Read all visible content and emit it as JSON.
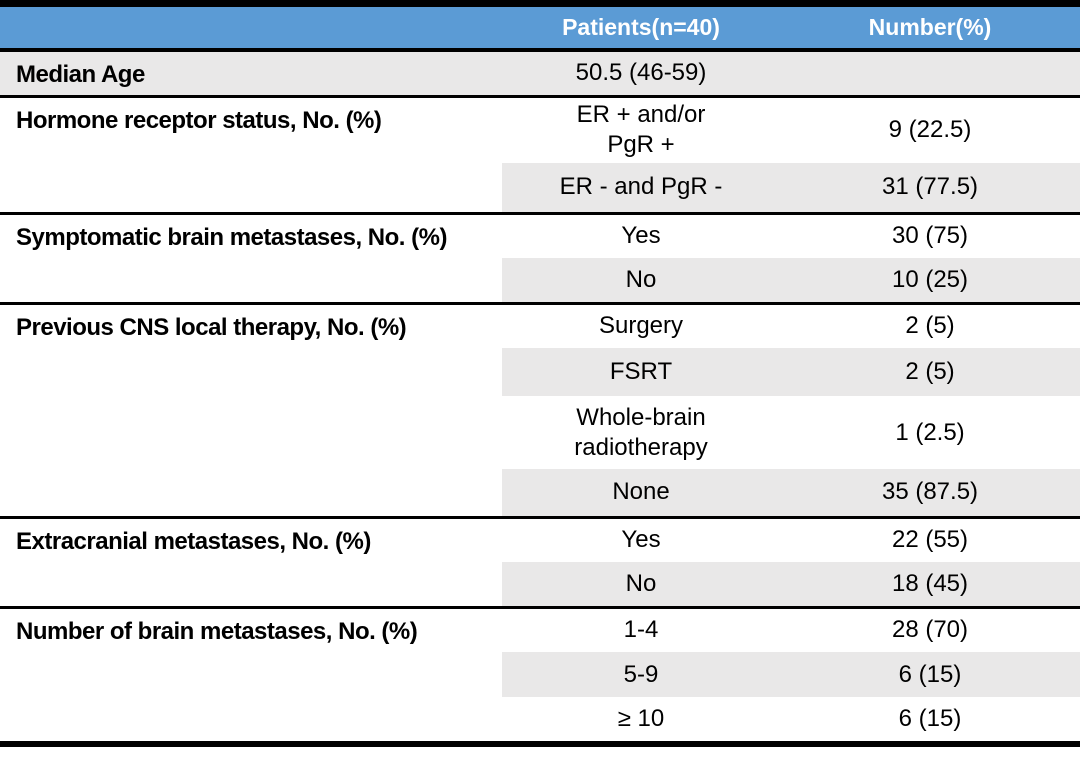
{
  "title": "Patient characteristics table",
  "colors": {
    "header_bg": "#5B9BD5",
    "header_text": "#FFFFFF",
    "band_bg": "#E9E8E8",
    "rule": "#000000"
  },
  "header": {
    "patients": "Patients(n=40)",
    "number": "Number(%)"
  },
  "sections": [
    {
      "label": "Median Age",
      "rows": [
        {
          "value": "50.5 (46-59)",
          "number": ""
        }
      ]
    },
    {
      "label": "Hormone receptor status, No. (%)",
      "rows": [
        {
          "value": "ER + and/or\nPgR +",
          "number": "9 (22.5)"
        },
        {
          "value": "ER - and PgR -",
          "number": "31 (77.5)"
        }
      ]
    },
    {
      "label": "Symptomatic brain metastases, No. (%)",
      "rows": [
        {
          "value": "Yes",
          "number": "30 (75)"
        },
        {
          "value": "No",
          "number": "10 (25)"
        }
      ]
    },
    {
      "label": "Previous CNS local therapy, No. (%)",
      "rows": [
        {
          "value": "Surgery",
          "number": "2 (5)"
        },
        {
          "value": "FSRT",
          "number": "2 (5)"
        },
        {
          "value": "Whole-brain\nradiotherapy",
          "number": "1 (2.5)"
        },
        {
          "value": "None",
          "number": "35 (87.5)"
        }
      ]
    },
    {
      "label": "Extracranial metastases, No. (%)",
      "rows": [
        {
          "value": "Yes",
          "number": "22 (55)"
        },
        {
          "value": "No",
          "number": "18 (45)"
        }
      ]
    },
    {
      "label": "Number of brain metastases, No. (%)",
      "rows": [
        {
          "value": "1-4",
          "number": "28 (70)"
        },
        {
          "value": "5-9",
          "number": "6 (15)"
        },
        {
          "value": "≥ 10",
          "number": "6 (15)"
        }
      ]
    }
  ]
}
